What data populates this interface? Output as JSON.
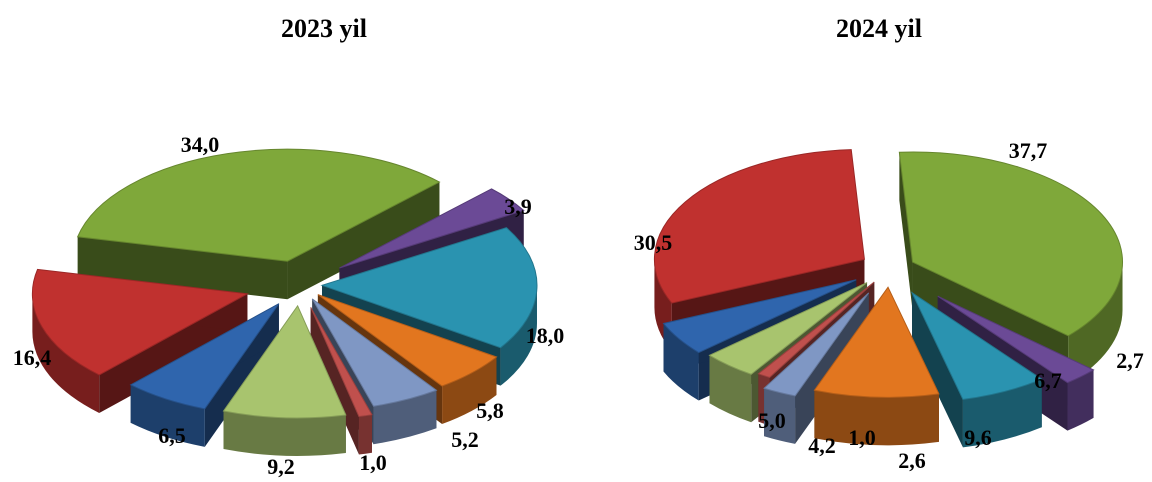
{
  "chart_data": [
    {
      "type": "pie",
      "title": "2023 yil",
      "slices": [
        {
          "label": "34,0",
          "value": 34.0,
          "color": "#7fa83a"
        },
        {
          "label": "3,9",
          "value": 3.9,
          "color": "#6b4a96"
        },
        {
          "label": "18,0",
          "value": 18.0,
          "color": "#2a93b0"
        },
        {
          "label": "5,8",
          "value": 5.8,
          "color": "#e2761f"
        },
        {
          "label": "5,2",
          "value": 5.2,
          "color": "#7f97c4"
        },
        {
          "label": "1,0",
          "value": 1.0,
          "color": "#c0504d"
        },
        {
          "label": "9,2",
          "value": 9.2,
          "color": "#a8c46e"
        },
        {
          "label": "6,5",
          "value": 6.5,
          "color": "#2f65ad"
        },
        {
          "label": "16,4",
          "value": 16.4,
          "color": "#c0312f"
        }
      ]
    },
    {
      "type": "pie",
      "title": "2024 yil",
      "slices": [
        {
          "label": "37,7",
          "value": 37.7,
          "color": "#7fa83a"
        },
        {
          "label": "2,7",
          "value": 2.7,
          "color": "#6b4a96"
        },
        {
          "label": "6,7",
          "value": 6.7,
          "color": "#2a93b0"
        },
        {
          "label": "9,6",
          "value": 9.6,
          "color": "#e2761f"
        },
        {
          "label": "2,6",
          "value": 2.6,
          "color": "#7f97c4"
        },
        {
          "label": "1,0",
          "value": 1.0,
          "color": "#c0504d"
        },
        {
          "label": "4,2",
          "value": 4.2,
          "color": "#a8c46e"
        },
        {
          "label": "5,0",
          "value": 5.0,
          "color": "#2f65ad"
        },
        {
          "label": "30,5",
          "value": 30.5,
          "color": "#c0312f"
        }
      ]
    }
  ]
}
